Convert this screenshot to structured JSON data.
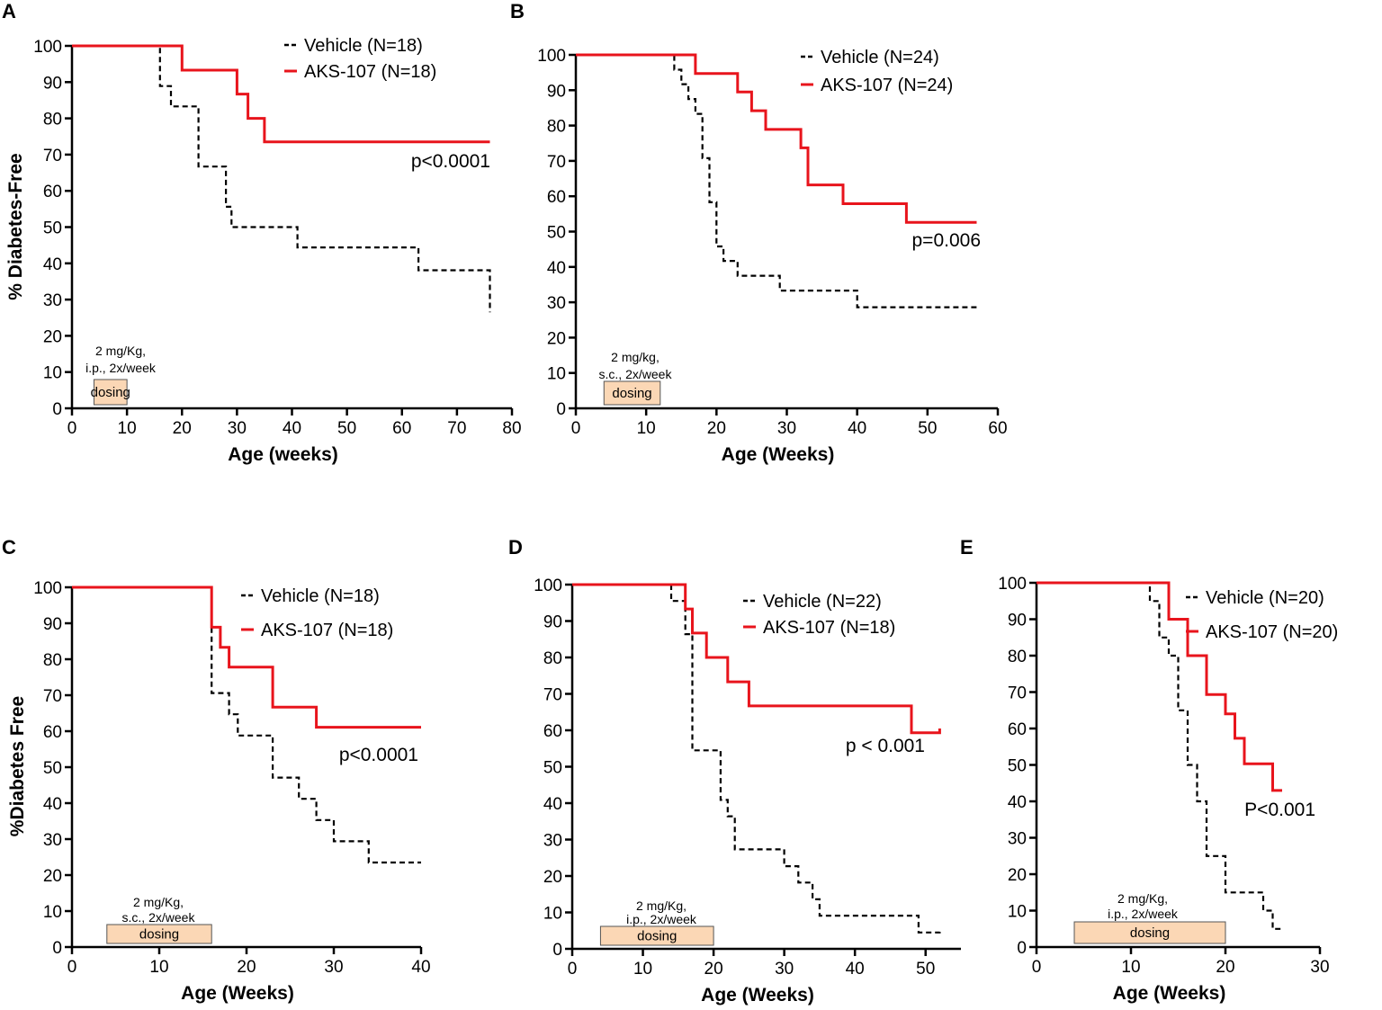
{
  "chart_data": [
    {
      "panel": "A",
      "type": "line",
      "subtype": "kaplan-meier",
      "xlabel": "Age (weeks)",
      "ylabel": "% Diabetes-Free",
      "xlim": [
        0,
        80
      ],
      "xticks": [
        0,
        10,
        20,
        30,
        40,
        50,
        60,
        70,
        80
      ],
      "ylim": [
        0,
        100
      ],
      "yticks": [
        0,
        10,
        20,
        30,
        40,
        50,
        60,
        70,
        80,
        90,
        100
      ],
      "legend": "top-right",
      "pvalue": "p<0.0001",
      "note_lines": [
        "2 mg/Kg,",
        "i.p., 2x/week"
      ],
      "dosing": {
        "label": "dosing",
        "start": 4,
        "end": 10
      },
      "series": [
        {
          "name": "Vehicle (N=18)",
          "color": "#000000",
          "style": "dashed",
          "x": [
            0,
            16,
            16,
            18,
            18,
            23,
            23,
            28,
            28,
            29,
            29,
            41,
            41,
            63,
            63,
            76,
            76
          ],
          "y": [
            100,
            100,
            88.9,
            88.9,
            83.3,
            83.3,
            66.7,
            66.7,
            55.6,
            55.6,
            50,
            50,
            44.4,
            44.4,
            38.1,
            38.1,
            26.5
          ]
        },
        {
          "name": "AKS-107 (N=18)",
          "color": "#e8141c",
          "style": "solid",
          "x": [
            0,
            20,
            20,
            30,
            30,
            32,
            32,
            35,
            35,
            76
          ],
          "y": [
            100,
            100,
            93.3,
            93.3,
            86.7,
            86.7,
            80,
            80,
            73.5,
            73.5
          ]
        }
      ]
    },
    {
      "panel": "B",
      "type": "line",
      "subtype": "kaplan-meier",
      "xlabel": "Age (Weeks)",
      "ylabel": "",
      "xlim": [
        0,
        60
      ],
      "xticks": [
        0,
        10,
        20,
        30,
        40,
        50,
        60
      ],
      "ylim": [
        0,
        100
      ],
      "yticks": [
        0,
        10,
        20,
        30,
        40,
        50,
        60,
        70,
        80,
        90,
        100
      ],
      "legend": "top-right",
      "pvalue": "p=0.006",
      "note_lines": [
        "2 mg/kg,",
        "s.c., 2x/week"
      ],
      "dosing": {
        "label": "dosing",
        "start": 4,
        "end": 12
      },
      "series": [
        {
          "name": "Vehicle (N=24)",
          "color": "#000000",
          "style": "dashed",
          "x": [
            0,
            14,
            14,
            15,
            15,
            16,
            16,
            17,
            17,
            18,
            18,
            19,
            19,
            20,
            20,
            21,
            21,
            23,
            23,
            29,
            29,
            40,
            40,
            57
          ],
          "y": [
            100,
            100,
            95.8,
            95.8,
            91.7,
            91.7,
            87.5,
            87.5,
            83.3,
            83.3,
            70.8,
            70.8,
            58.3,
            58.3,
            45.8,
            45.8,
            41.7,
            41.7,
            37.5,
            37.5,
            33.3,
            33.3,
            28.6,
            28.6
          ]
        },
        {
          "name": "AKS-107 (N=24)",
          "color": "#e8141c",
          "style": "solid",
          "x": [
            0,
            17,
            17,
            23,
            23,
            25,
            25,
            27,
            27,
            32,
            32,
            33,
            33,
            38,
            38,
            47,
            47,
            57
          ],
          "y": [
            100,
            100,
            94.7,
            94.7,
            89.5,
            89.5,
            84.2,
            84.2,
            78.9,
            78.9,
            73.7,
            73.7,
            63.2,
            63.2,
            57.9,
            57.9,
            52.6,
            52.6
          ]
        }
      ]
    },
    {
      "panel": "C",
      "type": "line",
      "subtype": "kaplan-meier",
      "xlabel": "Age (Weeks)",
      "ylabel": "%Diabetes Free",
      "xlim": [
        0,
        40
      ],
      "xticks": [
        0,
        10,
        20,
        30,
        40
      ],
      "ylim": [
        0,
        100
      ],
      "yticks": [
        0,
        10,
        20,
        30,
        40,
        50,
        60,
        70,
        80,
        90,
        100
      ],
      "legend": "top-right",
      "pvalue": "p<0.0001",
      "note_lines": [
        "2 mg/Kg,",
        "s.c., 2x/week"
      ],
      "dosing": {
        "label": "dosing",
        "start": 4,
        "end": 16
      },
      "series": [
        {
          "name": "Vehicle (N=18)",
          "color": "#000000",
          "style": "dashed",
          "x": [
            0,
            16,
            16,
            18,
            18,
            19,
            19,
            23,
            23,
            26,
            26,
            28,
            28,
            30,
            30,
            34,
            34,
            40
          ],
          "y": [
            100,
            100,
            70.6,
            70.6,
            64.7,
            64.7,
            58.8,
            58.8,
            47.1,
            47.1,
            41.2,
            41.2,
            35.3,
            35.3,
            29.4,
            29.4,
            23.5,
            23.5
          ]
        },
        {
          "name": "AKS-107 (N=18)",
          "color": "#e8141c",
          "style": "solid",
          "x": [
            0,
            16,
            16,
            17,
            17,
            18,
            18,
            23,
            23,
            28,
            28,
            40
          ],
          "y": [
            100,
            100,
            88.9,
            88.9,
            83.3,
            83.3,
            77.8,
            77.8,
            66.7,
            66.7,
            61.1,
            61.1
          ]
        }
      ]
    },
    {
      "panel": "D",
      "type": "line",
      "subtype": "kaplan-meier",
      "xlabel": "Age (Weeks)",
      "ylabel": "",
      "xlim": [
        0,
        55
      ],
      "xticks": [
        0,
        10,
        20,
        30,
        40,
        50
      ],
      "ylim": [
        0,
        100
      ],
      "yticks": [
        0,
        10,
        20,
        30,
        40,
        50,
        60,
        70,
        80,
        90,
        100
      ],
      "legend": "top-right",
      "pvalue": "p < 0.001",
      "note_lines": [
        "2 mg/Kg,",
        "i.p., 2x/week"
      ],
      "dosing": {
        "label": "dosing",
        "start": 4,
        "end": 20
      },
      "series": [
        {
          "name": "Vehicle (N=22)",
          "color": "#000000",
          "style": "dashed",
          "x": [
            0,
            14,
            14,
            16,
            16,
            17,
            17,
            21,
            21,
            22,
            22,
            23,
            23,
            30,
            30,
            32,
            32,
            34,
            34,
            35,
            35,
            49,
            49,
            52,
            52
          ],
          "y": [
            100,
            100,
            95.5,
            95.5,
            86.4,
            86.4,
            54.5,
            54.5,
            40.9,
            40.9,
            36.4,
            36.4,
            27.3,
            27.3,
            22.7,
            22.7,
            18.2,
            18.2,
            13.6,
            13.6,
            9.1,
            9.1,
            4.5,
            4.5,
            5.5
          ]
        },
        {
          "name": "AKS-107 (N=18)",
          "color": "#e8141c",
          "style": "solid",
          "x": [
            0,
            16,
            16,
            17,
            17,
            19,
            19,
            22,
            22,
            25,
            25,
            48,
            48,
            52,
            52
          ],
          "y": [
            100,
            100,
            93.3,
            93.3,
            86.7,
            86.7,
            80,
            80,
            73.3,
            73.3,
            66.7,
            66.7,
            59.3,
            59.3,
            60.5
          ]
        }
      ]
    },
    {
      "panel": "E",
      "type": "line",
      "subtype": "kaplan-meier",
      "xlabel": "Age (Weeks)",
      "ylabel": "",
      "xlim": [
        0,
        30
      ],
      "xticks": [
        0,
        10,
        20,
        30
      ],
      "ylim": [
        0,
        100
      ],
      "yticks": [
        0,
        10,
        20,
        30,
        40,
        50,
        60,
        70,
        80,
        90,
        100
      ],
      "legend": "top-right",
      "pvalue": "P<0.001",
      "note_lines": [
        "2 mg/Kg,",
        "i.p., 2x/week"
      ],
      "dosing": {
        "label": "dosing",
        "start": 4,
        "end": 20
      },
      "series": [
        {
          "name": "Vehicle (N=20)",
          "color": "#000000",
          "style": "dashed",
          "x": [
            0,
            12,
            12,
            13,
            13,
            14,
            14,
            15,
            15,
            16,
            16,
            17,
            17,
            18,
            18,
            19,
            19,
            20,
            20,
            23,
            23,
            24,
            24,
            25,
            25,
            26
          ],
          "y": [
            100,
            100,
            95,
            95,
            85,
            85,
            80,
            80,
            65,
            65,
            50,
            50,
            40,
            40,
            25,
            25,
            25,
            25,
            15,
            15,
            15,
            15,
            10,
            10,
            5,
            5
          ]
        },
        {
          "name": "AKS-107 (N=20)",
          "color": "#e8141c",
          "style": "solid",
          "x": [
            0,
            14,
            14,
            16,
            16,
            18,
            18,
            20,
            20,
            21,
            21,
            22,
            22,
            25,
            25,
            26
          ],
          "y": [
            100,
            100,
            90,
            90,
            80,
            80,
            69.3,
            69.3,
            64,
            64,
            57.3,
            57.3,
            50.3,
            50.3,
            43,
            43
          ]
        }
      ]
    }
  ]
}
